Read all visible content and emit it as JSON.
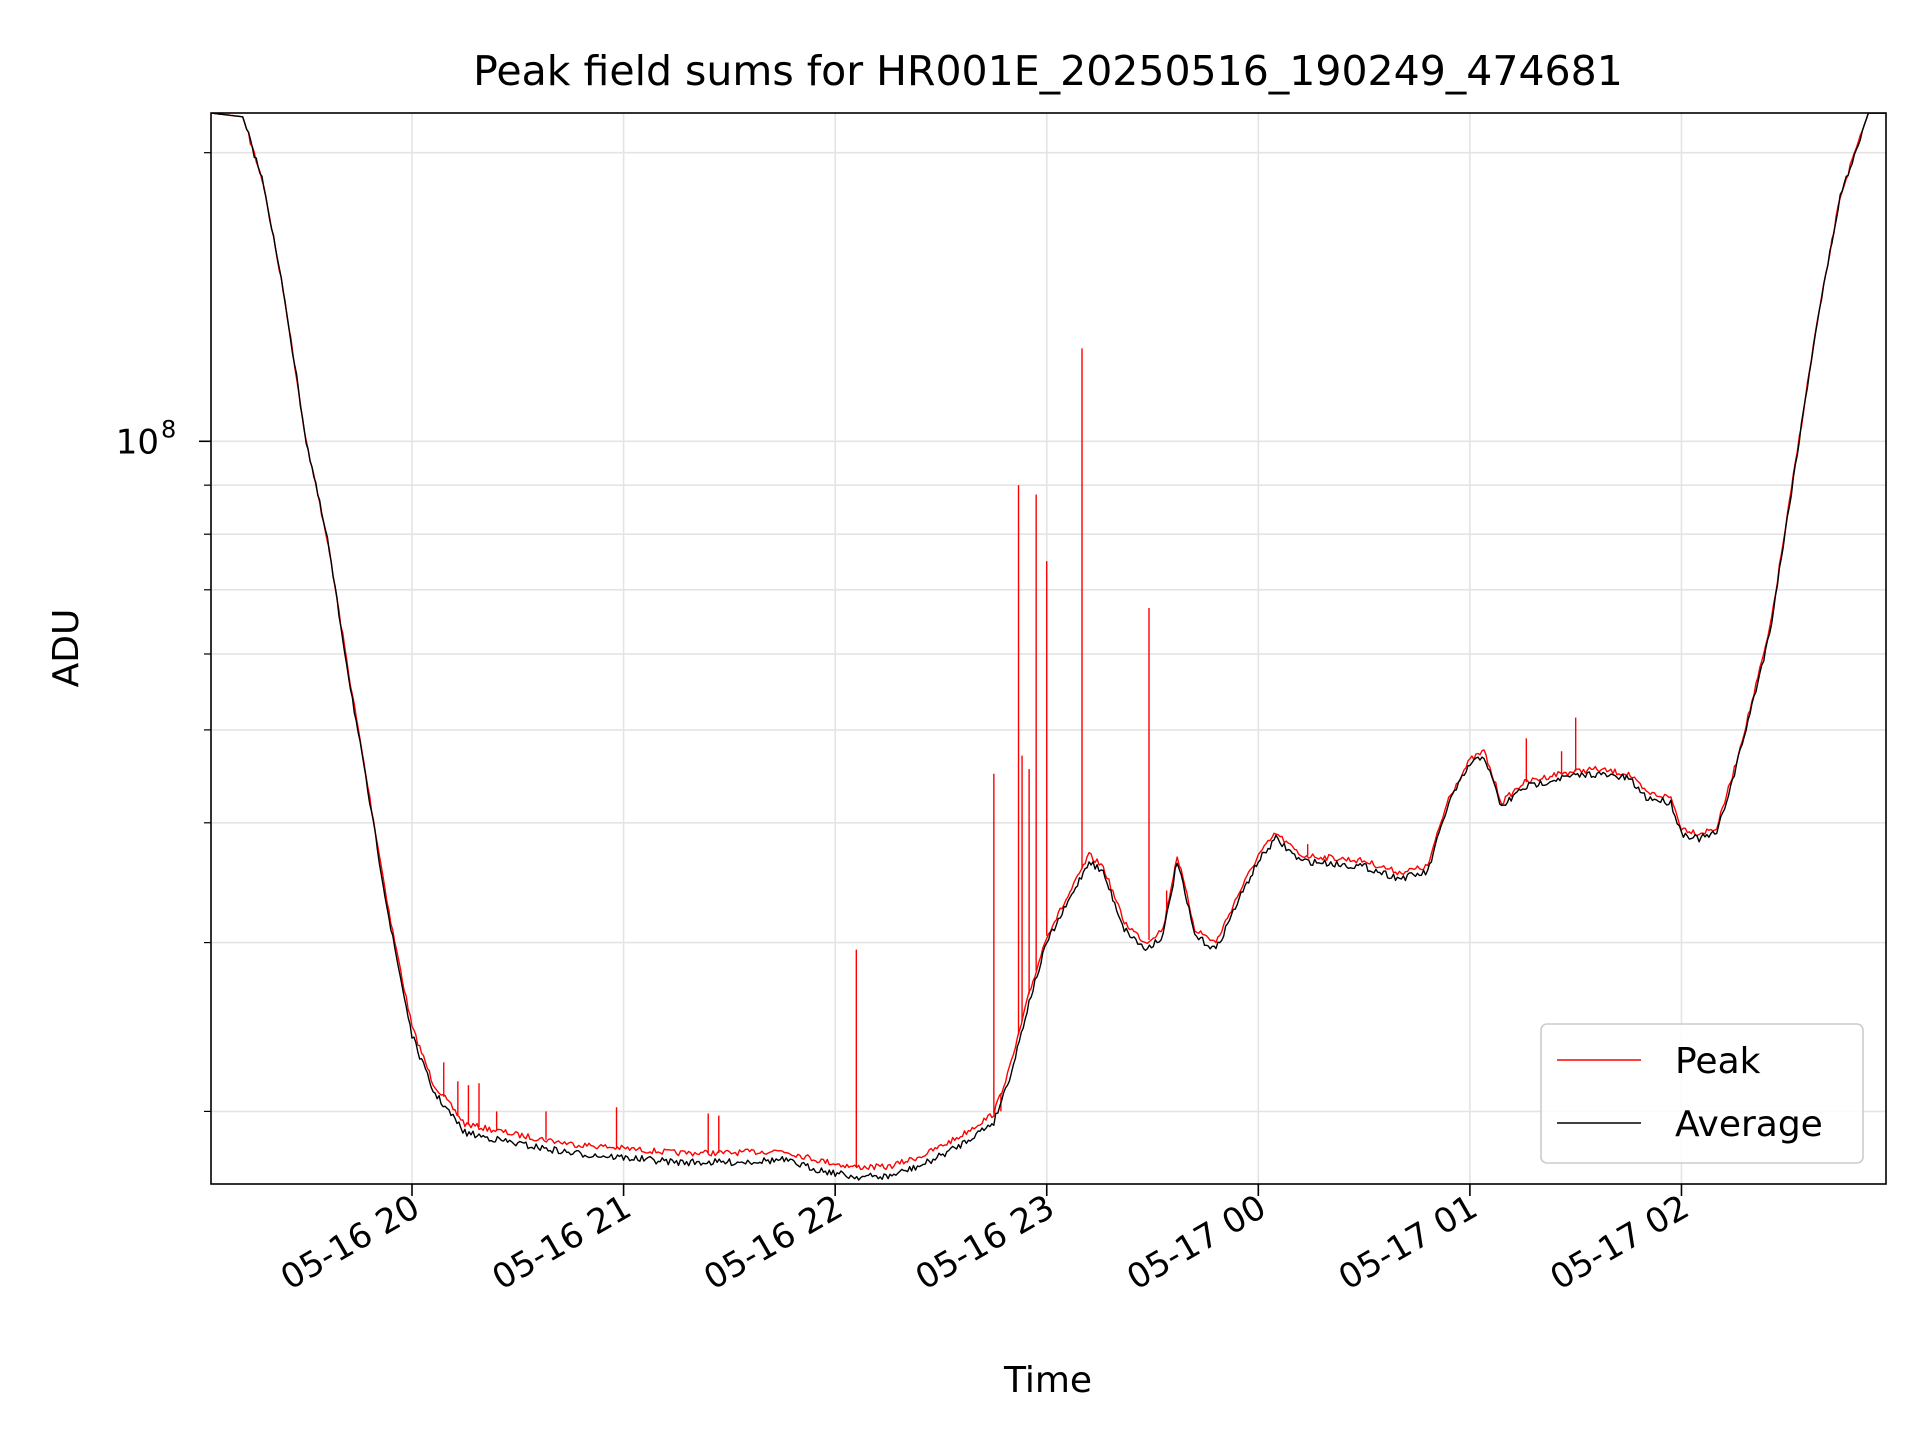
{
  "chart_data": {
    "type": "line",
    "title": "Peak field sums for HR001E_20250516_190249_474681",
    "xlabel": "Time",
    "ylabel": "ADU",
    "y_scale": "log",
    "ylim": [
      16800000,
      220000000
    ],
    "xlim": [
      "2025-05-16 19:03",
      "2025-05-17 02:58"
    ],
    "x_ticks": [
      {
        "t": "2025-05-16 20:00",
        "label": "05-16 20"
      },
      {
        "t": "2025-05-16 21:00",
        "label": "05-16 21"
      },
      {
        "t": "2025-05-16 22:00",
        "label": "05-16 22"
      },
      {
        "t": "2025-05-16 23:00",
        "label": "05-16 23"
      },
      {
        "t": "2025-05-17 00:00",
        "label": "05-17 00"
      },
      {
        "t": "2025-05-17 01:00",
        "label": "05-17 01"
      },
      {
        "t": "2025-05-17 02:00",
        "label": "05-17 02"
      }
    ],
    "y_major_ticks": [
      {
        "value": 100000000,
        "label_base": "10",
        "label_exp": "8"
      }
    ],
    "y_minor_ticks": [
      20000000,
      30000000,
      40000000,
      50000000,
      60000000,
      70000000,
      80000000,
      90000000,
      200000000
    ],
    "grid": true,
    "legend_position": "lower-right",
    "series": [
      {
        "name": "Average",
        "color": "#000000",
        "points": [
          [
            "2025-05-16 19:03",
            220000000
          ],
          [
            "2025-05-16 19:12",
            218000000
          ],
          [
            "2025-05-16 19:18",
            185000000
          ],
          [
            "2025-05-16 19:24",
            140000000
          ],
          [
            "2025-05-16 19:30",
            100000000
          ],
          [
            "2025-05-16 19:36",
            79000000
          ],
          [
            "2025-05-16 19:42",
            57000000
          ],
          [
            "2025-05-16 19:48",
            42000000
          ],
          [
            "2025-05-16 19:54",
            31000000
          ],
          [
            "2025-05-16 20:00",
            24000000
          ],
          [
            "2025-05-16 20:06",
            21000000
          ],
          [
            "2025-05-16 20:15",
            19000000
          ],
          [
            "2025-05-16 20:30",
            18500000
          ],
          [
            "2025-05-16 20:45",
            18100000
          ],
          [
            "2025-05-16 21:00",
            17900000
          ],
          [
            "2025-05-16 21:15",
            17700000
          ],
          [
            "2025-05-16 21:30",
            17700000
          ],
          [
            "2025-05-16 21:45",
            17800000
          ],
          [
            "2025-05-16 21:55",
            17400000
          ],
          [
            "2025-05-16 22:05",
            17100000
          ],
          [
            "2025-05-16 22:15",
            17100000
          ],
          [
            "2025-05-16 22:25",
            17600000
          ],
          [
            "2025-05-16 22:35",
            18400000
          ],
          [
            "2025-05-16 22:45",
            19500000
          ],
          [
            "2025-05-16 22:50",
            22000000
          ],
          [
            "2025-05-16 22:55",
            26000000
          ],
          [
            "2025-05-16 23:00",
            30000000
          ],
          [
            "2025-05-16 23:06",
            33000000
          ],
          [
            "2025-05-16 23:12",
            36500000
          ],
          [
            "2025-05-16 23:16",
            35500000
          ],
          [
            "2025-05-16 23:22",
            31000000
          ],
          [
            "2025-05-16 23:28",
            29500000
          ],
          [
            "2025-05-16 23:33",
            30500000
          ],
          [
            "2025-05-16 23:37",
            36500000
          ],
          [
            "2025-05-16 23:42",
            30500000
          ],
          [
            "2025-05-16 23:48",
            29500000
          ],
          [
            "2025-05-16 23:54",
            33000000
          ],
          [
            "2025-05-17 00:00",
            36500000
          ],
          [
            "2025-05-17 00:05",
            38500000
          ],
          [
            "2025-05-17 00:12",
            36500000
          ],
          [
            "2025-05-17 00:20",
            36300000
          ],
          [
            "2025-05-17 00:30",
            36000000
          ],
          [
            "2025-05-17 00:40",
            35000000
          ],
          [
            "2025-05-17 00:48",
            35500000
          ],
          [
            "2025-05-17 00:54",
            42000000
          ],
          [
            "2025-05-17 01:00",
            46000000
          ],
          [
            "2025-05-17 01:04",
            47000000
          ],
          [
            "2025-05-17 01:09",
            41500000
          ],
          [
            "2025-05-17 01:15",
            43500000
          ],
          [
            "2025-05-17 01:25",
            44500000
          ],
          [
            "2025-05-17 01:35",
            45000000
          ],
          [
            "2025-05-17 01:45",
            44500000
          ],
          [
            "2025-05-17 01:50",
            42500000
          ],
          [
            "2025-05-17 01:57",
            42000000
          ],
          [
            "2025-05-17 02:00",
            39000000
          ],
          [
            "2025-05-17 02:05",
            38500000
          ],
          [
            "2025-05-17 02:10",
            39000000
          ],
          [
            "2025-05-17 02:15",
            45000000
          ],
          [
            "2025-05-17 02:20",
            53000000
          ],
          [
            "2025-05-17 02:25",
            63000000
          ],
          [
            "2025-05-17 02:30",
            83000000
          ],
          [
            "2025-05-17 02:38",
            130000000
          ],
          [
            "2025-05-17 02:45",
            180000000
          ],
          [
            "2025-05-17 02:53",
            220000000
          ],
          [
            "2025-05-17 02:58",
            220000000
          ]
        ]
      },
      {
        "name": "Peak",
        "color": "#ff0000",
        "points": [
          [
            "2025-05-16 19:03",
            220000000
          ],
          [
            "2025-05-16 19:12",
            218000000
          ],
          [
            "2025-05-16 19:18",
            185000000
          ],
          [
            "2025-05-16 19:24",
            140000000
          ],
          [
            "2025-05-16 19:30",
            100000000
          ],
          [
            "2025-05-16 19:36",
            79000000
          ],
          [
            "2025-05-16 19:42",
            57500000
          ],
          [
            "2025-05-16 19:48",
            42500000
          ],
          [
            "2025-05-16 19:54",
            31500000
          ],
          [
            "2025-05-16 20:00",
            24500000
          ],
          [
            "2025-05-16 20:06",
            21400000
          ],
          [
            "2025-05-16 20:15",
            19400000
          ],
          [
            "2025-05-16 20:30",
            18900000
          ],
          [
            "2025-05-16 20:45",
            18500000
          ],
          [
            "2025-05-16 21:00",
            18300000
          ],
          [
            "2025-05-16 21:15",
            18100000
          ],
          [
            "2025-05-16 21:30",
            18100000
          ],
          [
            "2025-05-16 21:45",
            18200000
          ],
          [
            "2025-05-16 21:55",
            17800000
          ],
          [
            "2025-05-16 22:05",
            17500000
          ],
          [
            "2025-05-16 22:15",
            17500000
          ],
          [
            "2025-05-16 22:25",
            18000000
          ],
          [
            "2025-05-16 22:35",
            18800000
          ],
          [
            "2025-05-16 22:45",
            19900000
          ],
          [
            "2025-05-16 22:50",
            22500000
          ],
          [
            "2025-05-16 22:55",
            26500000
          ],
          [
            "2025-05-16 23:00",
            30500000
          ],
          [
            "2025-05-16 23:06",
            33500000
          ],
          [
            "2025-05-16 23:12",
            37000000
          ],
          [
            "2025-05-16 23:16",
            36000000
          ],
          [
            "2025-05-16 23:22",
            31500000
          ],
          [
            "2025-05-16 23:28",
            30000000
          ],
          [
            "2025-05-16 23:33",
            31000000
          ],
          [
            "2025-05-16 23:37",
            37000000
          ],
          [
            "2025-05-16 23:42",
            31000000
          ],
          [
            "2025-05-16 23:48",
            30000000
          ],
          [
            "2025-05-16 23:54",
            33500000
          ],
          [
            "2025-05-17 00:00",
            37000000
          ],
          [
            "2025-05-17 00:05",
            39000000
          ],
          [
            "2025-05-17 00:12",
            37000000
          ],
          [
            "2025-05-17 00:20",
            36800000
          ],
          [
            "2025-05-17 00:30",
            36500000
          ],
          [
            "2025-05-17 00:40",
            35500000
          ],
          [
            "2025-05-17 00:48",
            36000000
          ],
          [
            "2025-05-17 00:54",
            42500000
          ],
          [
            "2025-05-17 01:00",
            46500000
          ],
          [
            "2025-05-17 01:04",
            47500000
          ],
          [
            "2025-05-17 01:09",
            42000000
          ],
          [
            "2025-05-17 01:15",
            44000000
          ],
          [
            "2025-05-17 01:25",
            45000000
          ],
          [
            "2025-05-17 01:35",
            45500000
          ],
          [
            "2025-05-17 01:45",
            45000000
          ],
          [
            "2025-05-17 01:50",
            43000000
          ],
          [
            "2025-05-17 01:57",
            42500000
          ],
          [
            "2025-05-17 02:00",
            39500000
          ],
          [
            "2025-05-17 02:05",
            39000000
          ],
          [
            "2025-05-17 02:10",
            39500000
          ],
          [
            "2025-05-17 02:15",
            45500000
          ],
          [
            "2025-05-17 02:20",
            53500000
          ],
          [
            "2025-05-17 02:25",
            63500000
          ],
          [
            "2025-05-17 02:30",
            83500000
          ],
          [
            "2025-05-17 02:38",
            130000000
          ],
          [
            "2025-05-17 02:45",
            180000000
          ],
          [
            "2025-05-17 02:53",
            220000000
          ],
          [
            "2025-05-17 02:58",
            220000000
          ]
        ],
        "spikes": [
          [
            "2025-05-16 20:09",
            22500000
          ],
          [
            "2025-05-16 20:13",
            21500000
          ],
          [
            "2025-05-16 20:16",
            21300000
          ],
          [
            "2025-05-16 20:19",
            21400000
          ],
          [
            "2025-05-16 20:24",
            20000000
          ],
          [
            "2025-05-16 20:38",
            20000000
          ],
          [
            "2025-05-16 20:58",
            20200000
          ],
          [
            "2025-05-16 21:24",
            19900000
          ],
          [
            "2025-05-16 21:27",
            19800000
          ],
          [
            "2025-05-16 22:06",
            29500000
          ],
          [
            "2025-05-16 22:45",
            45000000
          ],
          [
            "2025-05-16 22:47",
            20000000
          ],
          [
            "2025-05-16 22:52",
            90000000
          ],
          [
            "2025-05-16 22:53",
            47000000
          ],
          [
            "2025-05-16 22:55",
            45500000
          ],
          [
            "2025-05-16 22:57",
            88000000
          ],
          [
            "2025-05-16 23:00",
            75000000
          ],
          [
            "2025-05-16 23:10",
            125000000
          ],
          [
            "2025-05-16 23:29",
            67000000
          ],
          [
            "2025-05-16 23:34",
            34000000
          ],
          [
            "2025-05-17 00:14",
            38000000
          ],
          [
            "2025-05-17 01:16",
            49000000
          ],
          [
            "2025-05-17 01:26",
            47500000
          ],
          [
            "2025-05-17 01:30",
            51500000
          ]
        ]
      }
    ]
  }
}
